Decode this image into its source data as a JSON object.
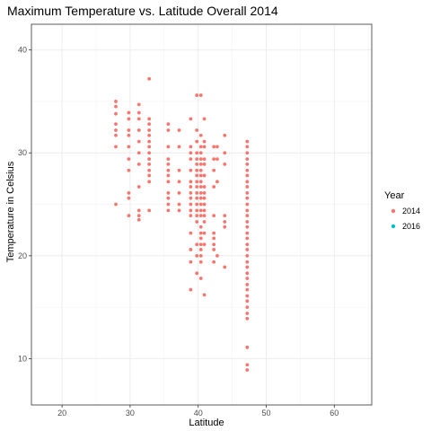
{
  "chart_data": {
    "type": "scatter",
    "title": "Maximum Temperature vs. Latitude Overall 2014",
    "xlabel": "Latitude",
    "ylabel": "Temperature in Celsius",
    "xlim": [
      15.5,
      65.5
    ],
    "ylim": [
      5.5,
      42.5
    ],
    "x_ticks": [
      20,
      30,
      40,
      50,
      60
    ],
    "y_ticks": [
      10,
      20,
      30,
      40
    ],
    "grid": true,
    "legend": {
      "title": "Year",
      "placement": "right",
      "entries": [
        {
          "name": "2014",
          "color": "#f8766d"
        },
        {
          "name": "2016",
          "color": "#00bfc4"
        }
      ]
    },
    "series": [
      {
        "name": "2014",
        "color": "#f8766d",
        "points": [
          [
            27.9,
            35.0
          ],
          [
            27.9,
            34.5
          ],
          [
            27.9,
            33.8
          ],
          [
            27.9,
            32.8
          ],
          [
            27.9,
            32.2
          ],
          [
            27.9,
            31.7
          ],
          [
            27.9,
            30.6
          ],
          [
            27.9,
            25.0
          ],
          [
            29.8,
            33.9
          ],
          [
            29.8,
            33.3
          ],
          [
            29.8,
            32.2
          ],
          [
            29.8,
            31.7
          ],
          [
            29.8,
            30.6
          ],
          [
            29.8,
            29.4
          ],
          [
            29.8,
            28.3
          ],
          [
            29.8,
            26.1
          ],
          [
            29.8,
            25.6
          ],
          [
            29.8,
            23.9
          ],
          [
            31.3,
            34.7
          ],
          [
            31.3,
            33.9
          ],
          [
            31.3,
            33.3
          ],
          [
            31.3,
            32.2
          ],
          [
            31.3,
            31.1
          ],
          [
            31.3,
            30.0
          ],
          [
            31.3,
            28.9
          ],
          [
            31.3,
            26.7
          ],
          [
            31.3,
            24.4
          ],
          [
            31.3,
            23.9
          ],
          [
            31.3,
            23.5
          ],
          [
            32.8,
            37.2
          ],
          [
            32.8,
            33.3
          ],
          [
            32.8,
            32.8
          ],
          [
            32.8,
            32.2
          ],
          [
            32.8,
            31.7
          ],
          [
            32.8,
            31.1
          ],
          [
            32.8,
            30.6
          ],
          [
            32.8,
            30.0
          ],
          [
            32.8,
            29.4
          ],
          [
            32.8,
            28.9
          ],
          [
            32.8,
            28.3
          ],
          [
            32.8,
            27.8
          ],
          [
            32.8,
            27.2
          ],
          [
            32.8,
            24.4
          ],
          [
            35.6,
            32.8
          ],
          [
            35.6,
            32.2
          ],
          [
            35.6,
            30.6
          ],
          [
            35.6,
            29.4
          ],
          [
            35.6,
            28.9
          ],
          [
            35.6,
            28.3
          ],
          [
            35.6,
            27.8
          ],
          [
            35.6,
            27.2
          ],
          [
            35.6,
            26.1
          ],
          [
            35.6,
            25.6
          ],
          [
            35.6,
            25.0
          ],
          [
            35.6,
            24.4
          ],
          [
            37.2,
            32.2
          ],
          [
            37.2,
            30.6
          ],
          [
            37.2,
            28.3
          ],
          [
            37.2,
            27.2
          ],
          [
            37.2,
            26.1
          ],
          [
            37.2,
            25.0
          ],
          [
            37.2,
            24.4
          ],
          [
            38.9,
            33.3
          ],
          [
            38.9,
            30.6
          ],
          [
            38.9,
            30.0
          ],
          [
            38.9,
            29.4
          ],
          [
            38.9,
            28.3
          ],
          [
            38.9,
            27.2
          ],
          [
            38.9,
            26.7
          ],
          [
            38.9,
            26.1
          ],
          [
            38.9,
            25.6
          ],
          [
            38.9,
            25.0
          ],
          [
            38.9,
            24.4
          ],
          [
            38.9,
            23.9
          ],
          [
            38.9,
            22.2
          ],
          [
            38.9,
            20.6
          ],
          [
            38.9,
            19.4
          ],
          [
            38.9,
            16.7
          ],
          [
            39.8,
            35.6
          ],
          [
            39.8,
            32.2
          ],
          [
            39.8,
            31.1
          ],
          [
            39.8,
            30.0
          ],
          [
            39.8,
            29.4
          ],
          [
            39.8,
            28.9
          ],
          [
            39.8,
            28.3
          ],
          [
            39.8,
            27.8
          ],
          [
            39.8,
            27.2
          ],
          [
            39.8,
            26.7
          ],
          [
            39.8,
            26.1
          ],
          [
            39.8,
            25.6
          ],
          [
            39.8,
            25.0
          ],
          [
            39.8,
            24.4
          ],
          [
            39.8,
            23.9
          ],
          [
            39.8,
            23.3
          ],
          [
            39.8,
            21.1
          ],
          [
            39.8,
            20.0
          ],
          [
            39.8,
            18.3
          ],
          [
            40.4,
            35.6
          ],
          [
            40.4,
            31.7
          ],
          [
            40.4,
            30.6
          ],
          [
            40.4,
            30.0
          ],
          [
            40.4,
            29.4
          ],
          [
            40.4,
            28.9
          ],
          [
            40.4,
            28.3
          ],
          [
            40.4,
            27.8
          ],
          [
            40.4,
            27.2
          ],
          [
            40.4,
            26.7
          ],
          [
            40.4,
            26.1
          ],
          [
            40.4,
            25.6
          ],
          [
            40.4,
            25.0
          ],
          [
            40.4,
            24.4
          ],
          [
            40.4,
            23.9
          ],
          [
            40.4,
            22.8
          ],
          [
            40.4,
            22.2
          ],
          [
            40.4,
            21.7
          ],
          [
            40.4,
            21.1
          ],
          [
            40.4,
            20.6
          ],
          [
            40.4,
            20.0
          ],
          [
            40.4,
            19.4
          ],
          [
            40.4,
            17.8
          ],
          [
            40.9,
            33.3
          ],
          [
            40.9,
            31.1
          ],
          [
            40.9,
            30.6
          ],
          [
            40.9,
            29.4
          ],
          [
            40.9,
            28.9
          ],
          [
            40.9,
            27.8
          ],
          [
            40.9,
            26.7
          ],
          [
            40.9,
            26.1
          ],
          [
            40.9,
            25.6
          ],
          [
            40.9,
            25.0
          ],
          [
            40.9,
            24.4
          ],
          [
            40.9,
            23.9
          ],
          [
            40.9,
            23.3
          ],
          [
            40.9,
            22.2
          ],
          [
            40.9,
            21.1
          ],
          [
            40.9,
            16.2
          ],
          [
            42.3,
            30.6
          ],
          [
            42.3,
            29.4
          ],
          [
            42.3,
            28.3
          ],
          [
            42.3,
            26.7
          ],
          [
            42.3,
            23.9
          ],
          [
            42.3,
            22.2
          ],
          [
            42.3,
            21.7
          ],
          [
            42.3,
            21.1
          ],
          [
            42.3,
            20.6
          ],
          [
            42.3,
            19.4
          ],
          [
            42.8,
            30.6
          ],
          [
            42.8,
            29.4
          ],
          [
            42.8,
            27.2
          ],
          [
            42.8,
            20.0
          ],
          [
            43.9,
            31.7
          ],
          [
            43.9,
            30.0
          ],
          [
            43.9,
            28.9
          ],
          [
            43.9,
            23.9
          ],
          [
            43.9,
            23.3
          ],
          [
            43.9,
            22.8
          ],
          [
            43.9,
            18.9
          ],
          [
            47.2,
            31.1
          ],
          [
            47.2,
            30.6
          ],
          [
            47.2,
            30.0
          ],
          [
            47.2,
            29.4
          ],
          [
            47.2,
            28.9
          ],
          [
            47.2,
            28.3
          ],
          [
            47.2,
            27.8
          ],
          [
            47.2,
            27.2
          ],
          [
            47.2,
            26.7
          ],
          [
            47.2,
            26.1
          ],
          [
            47.2,
            25.6
          ],
          [
            47.2,
            25.0
          ],
          [
            47.2,
            24.4
          ],
          [
            47.2,
            23.9
          ],
          [
            47.2,
            23.3
          ],
          [
            47.2,
            22.8
          ],
          [
            47.2,
            22.2
          ],
          [
            47.2,
            21.7
          ],
          [
            47.2,
            21.1
          ],
          [
            47.2,
            20.6
          ],
          [
            47.2,
            20.0
          ],
          [
            47.2,
            19.4
          ],
          [
            47.2,
            18.9
          ],
          [
            47.2,
            18.3
          ],
          [
            47.2,
            17.8
          ],
          [
            47.2,
            17.2
          ],
          [
            47.2,
            16.7
          ],
          [
            47.2,
            16.1
          ],
          [
            47.2,
            15.6
          ],
          [
            47.2,
            15.0
          ],
          [
            47.2,
            14.4
          ],
          [
            47.2,
            13.9
          ],
          [
            47.2,
            11.1
          ],
          [
            47.2,
            9.4
          ],
          [
            47.2,
            8.9
          ]
        ]
      },
      {
        "name": "2016",
        "color": "#00bfc4",
        "points": []
      }
    ]
  }
}
